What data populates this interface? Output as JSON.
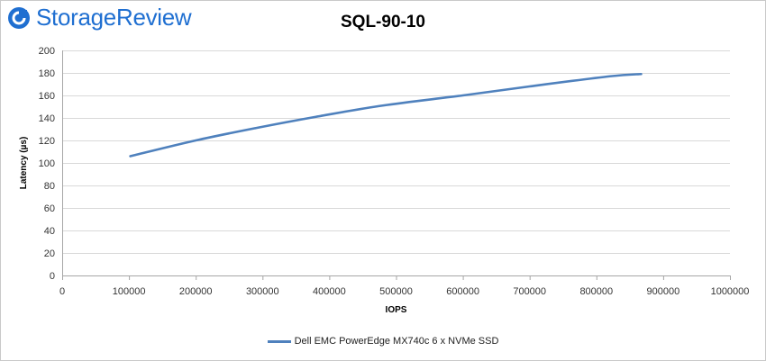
{
  "brand": {
    "name": "StorageReview"
  },
  "colors": {
    "series": "#4f81bd",
    "grid": "#d9d9d9",
    "brand": "#1f6fd1"
  },
  "chart_data": {
    "type": "line",
    "title": "SQL-90-10",
    "xlabel": "IOPS",
    "ylabel": "Latency (µs)",
    "xlim": [
      0,
      1000000
    ],
    "ylim": [
      0,
      200
    ],
    "xticks": [
      0,
      100000,
      200000,
      300000,
      400000,
      500000,
      600000,
      700000,
      800000,
      900000,
      1000000
    ],
    "yticks": [
      0,
      20,
      40,
      60,
      80,
      100,
      120,
      140,
      160,
      180,
      200
    ],
    "grid": "horizontal",
    "legend": "bottom",
    "series": [
      {
        "name": "Dell EMC PowerEdge MX740c 6 x NVMe SSD",
        "x": [
          102000,
          200000,
          290000,
          380000,
          480000,
          600000,
          700000,
          820000,
          867000
        ],
        "y": [
          106,
          120,
          131,
          141,
          151,
          160,
          168,
          177,
          179
        ]
      }
    ]
  }
}
